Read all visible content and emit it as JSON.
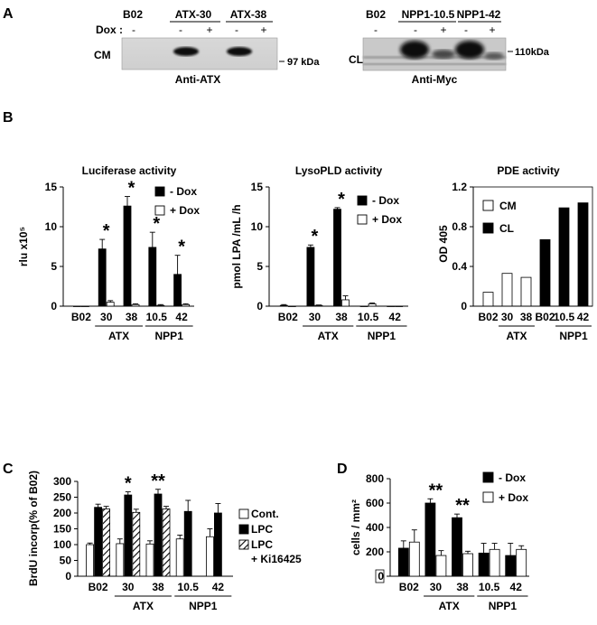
{
  "panel_letters": {
    "a": "A",
    "b": "B",
    "c": "C",
    "d": "D"
  },
  "blot_left": {
    "lanes_header": [
      "B02",
      "ATX-30",
      "ATX-38"
    ],
    "dox_label": "Dox :",
    "dox_signs": [
      "-",
      "-",
      "+",
      "-",
      "+"
    ],
    "row_label": "CM",
    "marker": "97 kDa",
    "antibody": "Anti-ATX"
  },
  "blot_right": {
    "lanes_header": [
      "B02",
      "NPP1-10.5",
      "NPP1-42"
    ],
    "dox_signs": [
      "-",
      "-",
      "+",
      "-",
      "+"
    ],
    "row_label": "CL",
    "marker": "110kDa",
    "antibody": "Anti-Myc"
  },
  "chart_data": [
    {
      "id": "luciferase",
      "type": "bar",
      "title": "Luciferase activity",
      "ylabel": "rlu x10⁵",
      "ylim": [
        0,
        15
      ],
      "yticks": [
        "0",
        "5",
        "10",
        "15"
      ],
      "categories": [
        "B02",
        "30",
        "38",
        "10.5",
        "42"
      ],
      "groups": [
        {
          "label": "ATX",
          "from": 1,
          "to": 2
        },
        {
          "label": "NPP1",
          "from": 3,
          "to": 4
        }
      ],
      "series": [
        {
          "name": "- Dox",
          "fill": "#000000",
          "values": [
            0,
            7.2,
            12.6,
            7.4,
            4.0
          ],
          "errors": [
            0,
            1.2,
            1.2,
            1.9,
            2.4
          ]
        },
        {
          "name": "+ Dox",
          "fill": "#ffffff",
          "values": [
            0,
            0.5,
            0.2,
            0.1,
            0.2
          ],
          "errors": [
            0,
            0.2,
            0.1,
            0.1,
            0.1
          ]
        }
      ],
      "annotations": [
        {
          "cat": 1,
          "text": "*"
        },
        {
          "cat": 2,
          "text": "*"
        },
        {
          "cat": 3,
          "text": "*"
        },
        {
          "cat": 4,
          "text": "*"
        }
      ]
    },
    {
      "id": "lysopld",
      "type": "bar",
      "title": "LysoPLD activity",
      "ylabel": "pmol LPA /mL /h",
      "ylim": [
        0,
        15
      ],
      "yticks": [
        "0",
        "5",
        "10",
        "15"
      ],
      "categories": [
        "B02",
        "30",
        "38",
        "10.5",
        "42"
      ],
      "groups": [
        {
          "label": "ATX",
          "from": 1,
          "to": 2
        },
        {
          "label": "NPP1",
          "from": 3,
          "to": 4
        }
      ],
      "series": [
        {
          "name": "- Dox",
          "fill": "#000000",
          "values": [
            0.1,
            7.4,
            12.2,
            0,
            0
          ],
          "errors": [
            0.1,
            0.3,
            0.2,
            0,
            0
          ]
        },
        {
          "name": "+ Dox",
          "fill": "#ffffff",
          "values": [
            0,
            0.1,
            0.8,
            0.3,
            0
          ],
          "errors": [
            0,
            0.05,
            0.5,
            0.1,
            0
          ]
        }
      ],
      "annotations": [
        {
          "cat": 1,
          "text": "*"
        },
        {
          "cat": 2,
          "text": "*"
        }
      ]
    },
    {
      "id": "pde",
      "type": "bar",
      "title": "PDE activity",
      "ylabel": "OD 405",
      "ylim": [
        0,
        1.2
      ],
      "yticks": [
        "0",
        "0.4",
        "0.8",
        "1.2"
      ],
      "categories": [
        "B02",
        "30",
        "38",
        "B02",
        "10.5",
        "42"
      ],
      "groups": [
        {
          "label": "ATX",
          "from": 1,
          "to": 2
        },
        {
          "label": "NPP1",
          "from": 4,
          "to": 5
        }
      ],
      "series": [
        {
          "name": "CM",
          "fill": "#ffffff",
          "values": [
            0.14,
            0.33,
            0.29,
            null,
            null,
            null
          ]
        },
        {
          "name": "CL",
          "fill": "#000000",
          "values": [
            null,
            null,
            null,
            0.67,
            0.99,
            1.04
          ]
        }
      ]
    },
    {
      "id": "brdu",
      "type": "bar",
      "ylabel": "BrdU incorp(% of B02)",
      "ylim": [
        0,
        300
      ],
      "yticks": [
        "0",
        "50",
        "100",
        "150",
        "200",
        "250",
        "300"
      ],
      "categories": [
        "B02",
        "30",
        "38",
        "10.5",
        "42"
      ],
      "groups": [
        {
          "label": "ATX",
          "from": 1,
          "to": 2
        },
        {
          "label": "NPP1",
          "from": 3,
          "to": 4
        }
      ],
      "series": [
        {
          "name": "Cont.",
          "fill": "#ffffff",
          "values": [
            100,
            103,
            102,
            118,
            125
          ],
          "errors": [
            5,
            15,
            10,
            12,
            25
          ]
        },
        {
          "name": "LPC",
          "fill": "#000000",
          "values": [
            218,
            257,
            260,
            205,
            200
          ],
          "errors": [
            10,
            10,
            15,
            35,
            30
          ]
        },
        {
          "name": "LPC + Ki16425",
          "fill": "hatch",
          "values": [
            213,
            202,
            213,
            null,
            null
          ],
          "errors": [
            8,
            10,
            8,
            0,
            0
          ]
        }
      ],
      "annotations": [
        {
          "cat": 1,
          "text": "*"
        },
        {
          "cat": 2,
          "text": "**"
        }
      ]
    },
    {
      "id": "cells",
      "type": "bar",
      "ylabel": "cells / mm²",
      "ylim": [
        0,
        800
      ],
      "yticks": [
        "0",
        "200",
        "400",
        "600",
        "800"
      ],
      "categories": [
        "B02",
        "30",
        "38",
        "10.5",
        "42"
      ],
      "groups": [
        {
          "label": "ATX",
          "from": 1,
          "to": 2
        },
        {
          "label": "NPP1",
          "from": 3,
          "to": 4
        }
      ],
      "series": [
        {
          "name": "- Dox",
          "fill": "#000000",
          "values": [
            230,
            600,
            480,
            190,
            170
          ],
          "errors": [
            60,
            35,
            30,
            80,
            100
          ]
        },
        {
          "name": "+ Dox",
          "fill": "#ffffff",
          "values": [
            280,
            170,
            185,
            220,
            220
          ],
          "errors": [
            100,
            40,
            20,
            50,
            30
          ]
        }
      ],
      "annotations": [
        {
          "cat": 1,
          "text": "**"
        },
        {
          "cat": 2,
          "text": "**"
        }
      ]
    }
  ]
}
